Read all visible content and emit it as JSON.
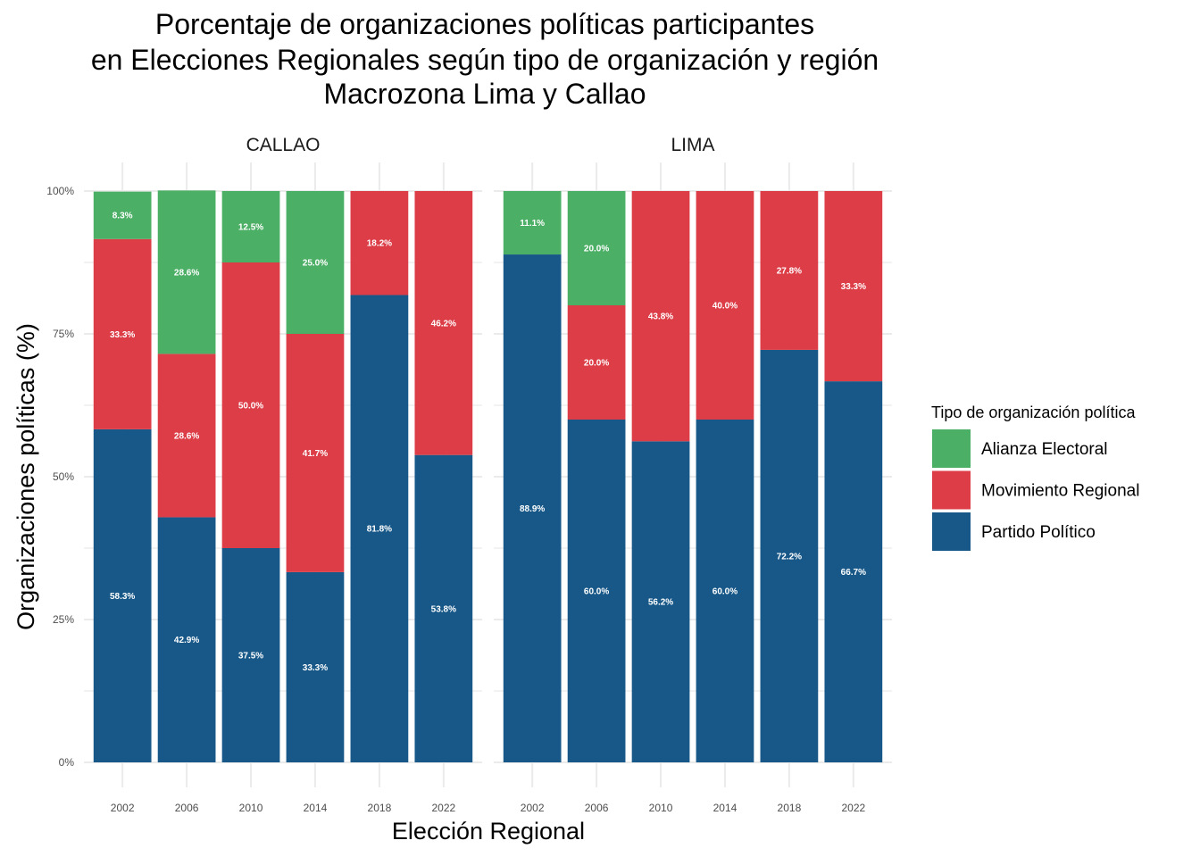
{
  "chart_data": {
    "type": "bar",
    "stacked": true,
    "title": [
      "Porcentaje de organizaciones políticas participantes",
      "en Elecciones Regionales según tipo de organización y región",
      "Macrozona Lima y Callao"
    ],
    "xlabel": "Elección Regional",
    "ylabel": "Organizaciones políticas (%)",
    "ylim": [
      0,
      100
    ],
    "y_ticks": [
      {
        "value": 0,
        "label": "0%"
      },
      {
        "value": 25,
        "label": "25%"
      },
      {
        "value": 50,
        "label": "50%"
      },
      {
        "value": 75,
        "label": "75%"
      },
      {
        "value": 100,
        "label": "100%"
      }
    ],
    "grid": true,
    "legend": {
      "title": "Tipo de organización política",
      "position": "right",
      "items": [
        {
          "name": "Alianza Electoral",
          "color": "#4caf66"
        },
        {
          "name": "Movimiento Regional",
          "color": "#dc3d47"
        },
        {
          "name": "Partido Político",
          "color": "#175888"
        }
      ]
    },
    "series_colors": {
      "Partido Político": "#175888",
      "Movimiento Regional": "#dc3d47",
      "Alianza Electoral": "#4caf66"
    },
    "stack_order": [
      "Partido Político",
      "Movimiento Regional",
      "Alianza Electoral"
    ],
    "panels": [
      {
        "name": "CALLAO",
        "categories": [
          "2002",
          "2006",
          "2010",
          "2014",
          "2018",
          "2022"
        ],
        "series": [
          {
            "name": "Partido Político",
            "values": [
              58.3,
              42.9,
              37.5,
              33.3,
              81.8,
              53.8
            ]
          },
          {
            "name": "Movimiento Regional",
            "values": [
              33.3,
              28.6,
              50.0,
              41.7,
              18.2,
              46.2
            ]
          },
          {
            "name": "Alianza Electoral",
            "values": [
              8.3,
              28.6,
              12.5,
              25.0,
              0,
              0
            ]
          }
        ]
      },
      {
        "name": "LIMA",
        "categories": [
          "2002",
          "2006",
          "2010",
          "2014",
          "2018",
          "2022"
        ],
        "series": [
          {
            "name": "Partido Político",
            "values": [
              88.9,
              60.0,
              56.2,
              60.0,
              72.2,
              66.7
            ]
          },
          {
            "name": "Movimiento Regional",
            "values": [
              0,
              20.0,
              43.8,
              40.0,
              27.8,
              33.3
            ]
          },
          {
            "name": "Alianza Electoral",
            "values": [
              11.1,
              20.0,
              0,
              0,
              0,
              0
            ]
          }
        ]
      }
    ]
  }
}
